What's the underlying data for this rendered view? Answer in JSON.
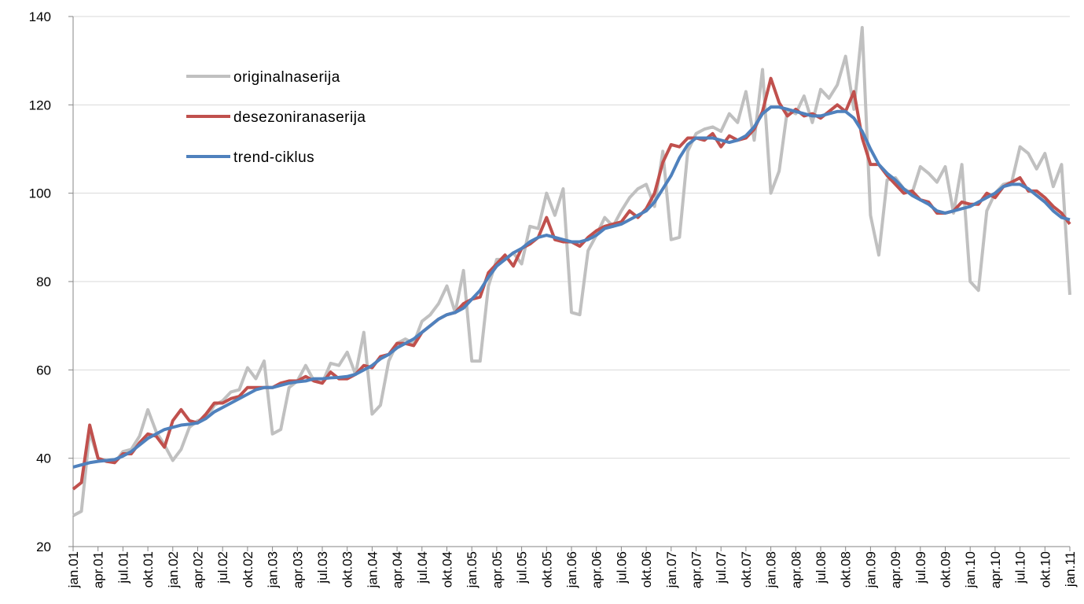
{
  "chart_data": {
    "type": "line",
    "categories": [
      "jan.01",
      null,
      null,
      "apr.01",
      null,
      null,
      "jul.01",
      null,
      null,
      "okt.01",
      null,
      null,
      "jan.02",
      null,
      null,
      "apr.02",
      null,
      null,
      "jul.02",
      null,
      null,
      "okt.02",
      null,
      null,
      "jan.03",
      null,
      null,
      "apr.03",
      null,
      null,
      "jul.03",
      null,
      null,
      "okt.03",
      null,
      null,
      "jan.04",
      null,
      null,
      "apr.04",
      null,
      null,
      "jul.04",
      null,
      null,
      "okt.04",
      null,
      null,
      "jan.05",
      null,
      null,
      "apr.05",
      null,
      null,
      "jul.05",
      null,
      null,
      "okt.05",
      null,
      null,
      "jan.06",
      null,
      null,
      "apr.06",
      null,
      null,
      "jul.06",
      null,
      null,
      "okt.06",
      null,
      null,
      "jan.07",
      null,
      null,
      "apr.07",
      null,
      null,
      "jul.07",
      null,
      null,
      "okt.07",
      null,
      null,
      "jan.08",
      null,
      null,
      "apr.08",
      null,
      null,
      "jul.08",
      null,
      null,
      "okt.08",
      null,
      null,
      "jan.09",
      null,
      null,
      "apr.09",
      null,
      null,
      "jul.09",
      null,
      null,
      "okt.09",
      null,
      null,
      "jan.10",
      null,
      null,
      "apr.10",
      null,
      null,
      "jul.10",
      null,
      null,
      "okt.10",
      null,
      null,
      "jan.11"
    ],
    "series": [
      {
        "name": "originalnaserija",
        "color": "#c0c0c0",
        "values": [
          27,
          28,
          46,
          40,
          39.5,
          39,
          41.5,
          42,
          45,
          51,
          46,
          43,
          39.5,
          42,
          47,
          48.5,
          49,
          52,
          53,
          55,
          55.5,
          60.5,
          58,
          62,
          45.5,
          46.5,
          56,
          57.5,
          61,
          57.5,
          57,
          61.5,
          61,
          64,
          59,
          68.5,
          50,
          52,
          62,
          66,
          67,
          66,
          71,
          72.5,
          75,
          79,
          73,
          82.5,
          62,
          62,
          79,
          85,
          85,
          86.5,
          84,
          92.5,
          92,
          100,
          95,
          101,
          73,
          72.5,
          87,
          90.5,
          94.5,
          92.5,
          96,
          99,
          101,
          102,
          97,
          109.5,
          89.5,
          90,
          109.5,
          113.5,
          114.5,
          115,
          114,
          118,
          116,
          123,
          112,
          128,
          100,
          105,
          119,
          118,
          122,
          116,
          123.5,
          121.5,
          124.5,
          131,
          119,
          137.5,
          95,
          86,
          103,
          103.5,
          101,
          100,
          106,
          104.5,
          102.5,
          106,
          95.5,
          106.5,
          80,
          78,
          96,
          100,
          102,
          102.5,
          110.5,
          109,
          105.5,
          109,
          101.5,
          106.5,
          77
        ]
      },
      {
        "name": "desezoniranaserija",
        "color": "#c0504d",
        "values": [
          33,
          34.5,
          47.5,
          40,
          39.3,
          39,
          41,
          41,
          43.5,
          45.5,
          45,
          42.5,
          48.5,
          51,
          48.5,
          48,
          50,
          52.5,
          52.5,
          53.5,
          54,
          56,
          56,
          56,
          56,
          57,
          57.5,
          57.5,
          58.5,
          57.5,
          57,
          59.5,
          58,
          58,
          59,
          61,
          60.5,
          63,
          63.5,
          66,
          66,
          65.5,
          68.5,
          70,
          71.5,
          72.5,
          73,
          75,
          76,
          76.5,
          82,
          84,
          86,
          83.5,
          87.5,
          88.5,
          90,
          94.5,
          89.5,
          89,
          89,
          88,
          90,
          91.5,
          92.5,
          93,
          93.5,
          96,
          94.5,
          96.5,
          100,
          107,
          111,
          110.5,
          112.5,
          112.5,
          112,
          113.5,
          110.5,
          113,
          112,
          112.5,
          114.5,
          118.5,
          126,
          120.5,
          117.5,
          119,
          117.5,
          118,
          117,
          118.5,
          120,
          118.5,
          123,
          112.5,
          106.5,
          106.5,
          104,
          102,
          100,
          100.5,
          98.5,
          98,
          95.5,
          95.5,
          96,
          98,
          97.5,
          97.5,
          100,
          99,
          101.5,
          102.5,
          103.5,
          100.5,
          100.5,
          99,
          97,
          95.5,
          93
        ]
      },
      {
        "name": "trend-ciklus",
        "color": "#4f81bd",
        "values": [
          38,
          38.5,
          39,
          39.3,
          39.5,
          39.7,
          40.5,
          41.5,
          43,
          44.5,
          45.5,
          46.5,
          47,
          47.5,
          47.7,
          48,
          49,
          50.5,
          51.5,
          52.5,
          53.5,
          54.5,
          55.5,
          56,
          56,
          56.5,
          57,
          57.3,
          57.5,
          58,
          58,
          58.2,
          58.3,
          58.5,
          59,
          60,
          61,
          62.5,
          63.5,
          65,
          66,
          67,
          68.5,
          70,
          71.5,
          72.5,
          73,
          74,
          76,
          78,
          81,
          83.5,
          85,
          86.5,
          87.5,
          89,
          90,
          90.5,
          90,
          89.5,
          89,
          89,
          89.5,
          90.5,
          92,
          92.5,
          93,
          94,
          95,
          96,
          98,
          101,
          104,
          108,
          111,
          112.5,
          112.5,
          112.5,
          112,
          111.5,
          112,
          113,
          115,
          118,
          119.5,
          119.5,
          119,
          118.5,
          118,
          117.5,
          117.5,
          118,
          118.5,
          118.5,
          117,
          114,
          110,
          106.5,
          104.5,
          103,
          101,
          99.5,
          98.5,
          97.5,
          96,
          95.5,
          96,
          96.5,
          97,
          98,
          99,
          100,
          101.5,
          102,
          102,
          101,
          99.5,
          98,
          96,
          94.5,
          94
        ]
      }
    ],
    "ylim": [
      20,
      140
    ],
    "yticks": [
      20,
      40,
      60,
      80,
      100,
      120,
      140
    ],
    "grid": true,
    "legend": "upper left"
  }
}
